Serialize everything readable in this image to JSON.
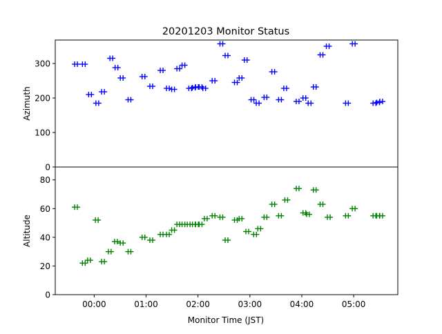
{
  "chart_data": {
    "type": "scatter",
    "title": "20201203 Monitor Status",
    "xlabel": "Monitor Time (JST)",
    "x_unit": "hours",
    "xlim": [
      -0.75,
      5.85
    ],
    "x_ticks": [
      {
        "value": 0,
        "label": "00:00"
      },
      {
        "value": 1,
        "label": "01:00"
      },
      {
        "value": 2,
        "label": "02:00"
      },
      {
        "value": 3,
        "label": "03:00"
      },
      {
        "value": 4,
        "label": "04:00"
      },
      {
        "value": 5,
        "label": "05:00"
      }
    ],
    "panels": [
      {
        "ylabel": "Azimuth",
        "ylim": [
          0,
          368
        ],
        "y_ticks": [
          0,
          100,
          200,
          300
        ],
        "color": "#0000ff",
        "x": [
          -0.35,
          -0.2,
          -0.08,
          0.06,
          0.17,
          0.33,
          0.43,
          0.53,
          0.68,
          0.95,
          1.1,
          1.3,
          1.42,
          1.52,
          1.62,
          1.72,
          1.85,
          1.92,
          1.98,
          2.05,
          2.12,
          2.3,
          2.45,
          2.55,
          2.73,
          2.82,
          2.92,
          3.05,
          3.15,
          3.3,
          3.45,
          3.58,
          3.68,
          3.92,
          4.05,
          4.15,
          4.25,
          4.38,
          4.5,
          4.87,
          5.0,
          5.4,
          5.47,
          5.53
        ],
        "y": [
          298,
          298,
          210,
          185,
          218,
          315,
          288,
          258,
          195,
          262,
          234,
          280,
          228,
          225,
          285,
          295,
          228,
          230,
          232,
          232,
          228,
          250,
          357,
          323,
          245,
          258,
          310,
          195,
          185,
          202,
          276,
          195,
          228,
          190,
          200,
          185,
          232,
          325,
          350,
          185,
          357,
          185,
          187,
          190
        ]
      },
      {
        "ylabel": "Altitude",
        "ylim": [
          0,
          89
        ],
        "y_ticks": [
          0,
          20,
          40,
          60,
          80
        ],
        "color": "#008000",
        "x": [
          -0.35,
          -0.2,
          -0.1,
          0.05,
          0.17,
          0.3,
          0.42,
          0.53,
          0.68,
          0.95,
          1.1,
          1.3,
          1.42,
          1.52,
          1.62,
          1.72,
          1.82,
          1.92,
          1.98,
          2.05,
          2.15,
          2.3,
          2.45,
          2.55,
          2.73,
          2.82,
          2.95,
          3.1,
          3.18,
          3.3,
          3.45,
          3.58,
          3.7,
          3.92,
          4.05,
          4.12,
          4.25,
          4.38,
          4.52,
          4.87,
          5.0,
          5.4,
          5.47,
          5.53
        ],
        "y": [
          61,
          22,
          24,
          52,
          23,
          30,
          37,
          36,
          30,
          40,
          38,
          42,
          42,
          45,
          49,
          49,
          49,
          49,
          49,
          49,
          53,
          55,
          54,
          38,
          52,
          53,
          44,
          42,
          46,
          54,
          63,
          55,
          66,
          74,
          57,
          56,
          73,
          63,
          54,
          55,
          60,
          55,
          55,
          55
        ]
      }
    ]
  }
}
